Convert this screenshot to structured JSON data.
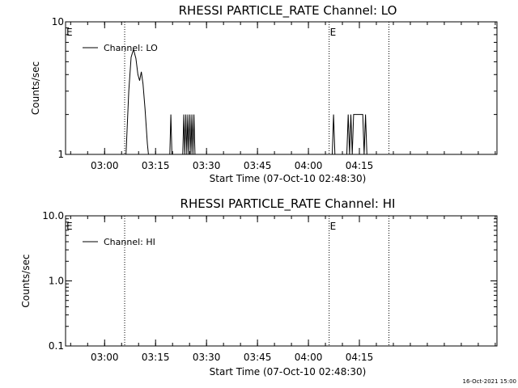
{
  "footer": {
    "timestamp": "16-Oct-2021 15:00"
  },
  "chart_data": [
    {
      "type": "line",
      "title": "RHESSI PARTICLE_RATE Channel: LO",
      "xlabel": "Start Time (07-Oct-10 02:48:30)",
      "ylabel": "Counts/sec",
      "y_scale": "log",
      "ylim": [
        1,
        10
      ],
      "y_ticks": [
        {
          "v": 1,
          "label": "1"
        },
        {
          "v": 10,
          "label": "10"
        }
      ],
      "xlim_min": [
        0,
        127
      ],
      "x_ticks": [
        {
          "v": 11.5,
          "label": "03:00"
        },
        {
          "v": 26.5,
          "label": "03:15"
        },
        {
          "v": 41.5,
          "label": "03:30"
        },
        {
          "v": 56.5,
          "label": "03:45"
        },
        {
          "v": 71.5,
          "label": "04:00"
        },
        {
          "v": 86.5,
          "label": "04:15"
        }
      ],
      "eclipse_lines_min": [
        17.4,
        77.6,
        95.2
      ],
      "eclipse_flags": [
        {
          "x": 0,
          "label": "E"
        },
        {
          "x": 77.6,
          "label": "E"
        }
      ],
      "legend": "top-left",
      "series": [
        {
          "name": "Channel: LO",
          "points": [
            [
              17.8,
              1
            ],
            [
              18.6,
              3
            ],
            [
              19.3,
              5.4
            ],
            [
              20.0,
              6.2
            ],
            [
              20.7,
              5.3
            ],
            [
              21.3,
              4.0
            ],
            [
              21.8,
              3.6
            ],
            [
              22.3,
              4.2
            ],
            [
              22.8,
              3.4
            ],
            [
              23.4,
              2.2
            ],
            [
              24.1,
              1.2
            ],
            [
              24.4,
              1
            ],
            [
              30.7,
              1
            ],
            [
              31.0,
              2
            ],
            [
              31.3,
              1
            ],
            [
              34.5,
              1
            ],
            [
              34.8,
              2
            ],
            [
              35.1,
              1
            ],
            [
              35.4,
              2
            ],
            [
              35.7,
              1
            ],
            [
              36.0,
              2
            ],
            [
              36.3,
              1
            ],
            [
              36.6,
              2
            ],
            [
              36.9,
              1
            ],
            [
              37.2,
              2
            ],
            [
              37.5,
              1
            ],
            [
              37.8,
              2
            ],
            [
              38.1,
              1
            ],
            [
              78.5,
              1
            ],
            [
              78.9,
              2
            ],
            [
              79.3,
              1
            ],
            [
              82.8,
              1
            ],
            [
              83.2,
              2
            ],
            [
              83.6,
              1
            ],
            [
              84.0,
              2
            ],
            [
              84.4,
              1
            ],
            [
              84.8,
              2
            ],
            [
              87.5,
              2
            ],
            [
              87.9,
              1
            ],
            [
              88.3,
              2
            ],
            [
              88.7,
              1
            ]
          ]
        }
      ]
    },
    {
      "type": "line",
      "title": "RHESSI PARTICLE_RATE Channel: HI",
      "xlabel": "Start Time (07-Oct-10 02:48:30)",
      "ylabel": "Counts/sec",
      "y_scale": "log",
      "ylim": [
        0.1,
        10
      ],
      "y_ticks": [
        {
          "v": 0.1,
          "label": "0.1"
        },
        {
          "v": 1,
          "label": "1.0"
        },
        {
          "v": 10,
          "label": "10.0"
        }
      ],
      "xlim_min": [
        0,
        127
      ],
      "x_ticks": [
        {
          "v": 11.5,
          "label": "03:00"
        },
        {
          "v": 26.5,
          "label": "03:15"
        },
        {
          "v": 41.5,
          "label": "03:30"
        },
        {
          "v": 56.5,
          "label": "03:45"
        },
        {
          "v": 71.5,
          "label": "04:00"
        },
        {
          "v": 86.5,
          "label": "04:15"
        }
      ],
      "eclipse_lines_min": [
        17.4,
        77.6,
        95.2
      ],
      "eclipse_flags": [
        {
          "x": 0,
          "label": "E"
        },
        {
          "x": 77.6,
          "label": "E"
        }
      ],
      "legend": "top-left",
      "series": [
        {
          "name": "Channel: HI",
          "points": []
        }
      ]
    }
  ]
}
